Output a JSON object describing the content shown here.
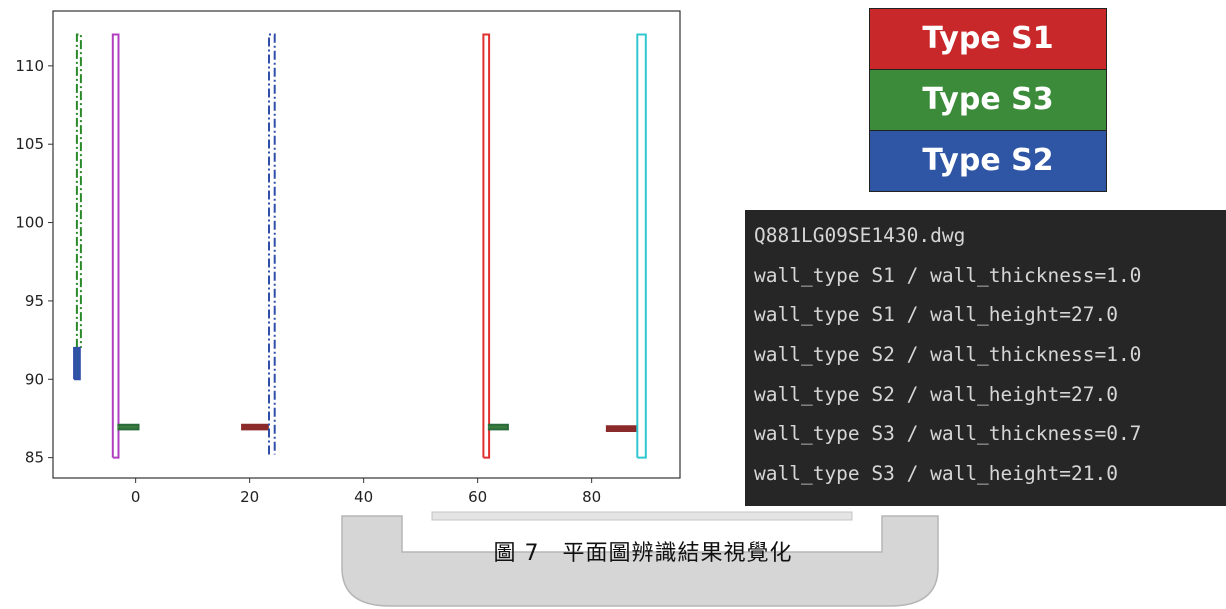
{
  "legend": {
    "items": [
      {
        "label": "Type S1",
        "color": "#c8282a"
      },
      {
        "label": "Type S3",
        "color": "#3b8b3a"
      },
      {
        "label": "Type S2",
        "color": "#2f55a5"
      }
    ]
  },
  "console": {
    "lines": [
      "Q881LG09SE1430.dwg",
      "wall_type S1 / wall_thickness=1.0",
      "wall_type S1 / wall_height=27.0",
      "wall_type S2 / wall_thickness=1.0",
      "wall_type S2 / wall_height=27.0",
      "wall_type S3 / wall_thickness=0.7",
      "wall_type S3 / wall_height=21.0"
    ]
  },
  "caption": "圖 7　平面圖辨識結果視覺化",
  "chart_data": {
    "type": "line",
    "title": "",
    "xlabel": "",
    "ylabel": "",
    "xlim": [
      -14.5,
      95.5
    ],
    "ylim": [
      83.7,
      113.5
    ],
    "xticks": [
      0,
      20,
      40,
      60,
      80
    ],
    "yticks": [
      85,
      90,
      95,
      100,
      105,
      110
    ],
    "grid": false,
    "series": [
      {
        "color": "#2a8a2a",
        "style": "dashdot",
        "points": [
          [
            -10.3,
            92
          ],
          [
            -10.3,
            112
          ],
          [
            -9.6,
            112
          ],
          [
            -9.6,
            92
          ]
        ]
      },
      {
        "color": "#2f4fa8",
        "style": "solid",
        "points": [
          [
            -10.8,
            90
          ],
          [
            -10.8,
            92
          ],
          [
            -9.8,
            92
          ],
          [
            -9.8,
            90
          ],
          [
            -10.8,
            90
          ]
        ],
        "fill": "#2f55a5"
      },
      {
        "color": "#b040c0",
        "style": "solid",
        "points": [
          [
            -4,
            85
          ],
          [
            -4,
            112
          ],
          [
            -3,
            112
          ],
          [
            -3,
            85
          ],
          [
            -4,
            85
          ]
        ]
      },
      {
        "color": "#2a6a3a",
        "style": "solid",
        "points": [
          [
            -3.2,
            86.8
          ],
          [
            0.5,
            86.8
          ],
          [
            0.5,
            87.1
          ],
          [
            -3.2,
            87.1
          ]
        ],
        "fill": "#3a7a3a"
      },
      {
        "color": "#8a2a2a",
        "style": "solid",
        "points": [
          [
            18.5,
            86.8
          ],
          [
            23.2,
            86.8
          ],
          [
            23.2,
            87.1
          ],
          [
            18.5,
            87.1
          ]
        ],
        "fill": "#8a2a2a"
      },
      {
        "color": "#2f4fa8",
        "style": "dashdot",
        "points": [
          [
            23.4,
            85.2
          ],
          [
            23.4,
            112
          ],
          [
            24.4,
            112
          ],
          [
            24.4,
            85.2
          ]
        ]
      },
      {
        "color": "#e03030",
        "style": "solid",
        "points": [
          [
            61,
            85
          ],
          [
            61,
            112
          ],
          [
            62,
            112
          ],
          [
            62,
            85
          ],
          [
            61,
            85
          ]
        ]
      },
      {
        "color": "#2a6a3a",
        "style": "solid",
        "points": [
          [
            61.8,
            86.8
          ],
          [
            65.3,
            86.8
          ],
          [
            65.3,
            87.1
          ],
          [
            61.8,
            87.1
          ]
        ],
        "fill": "#3a7a3a"
      },
      {
        "color": "#8a2a2a",
        "style": "solid",
        "points": [
          [
            82.5,
            86.7
          ],
          [
            87.7,
            86.7
          ],
          [
            87.7,
            87.0
          ],
          [
            82.5,
            87.0
          ]
        ],
        "fill": "#8a2a2a"
      },
      {
        "color": "#30c8d0",
        "style": "solid",
        "points": [
          [
            88,
            85
          ],
          [
            88,
            112
          ],
          [
            89.5,
            112
          ],
          [
            89.5,
            85
          ],
          [
            88,
            85
          ]
        ]
      }
    ]
  }
}
